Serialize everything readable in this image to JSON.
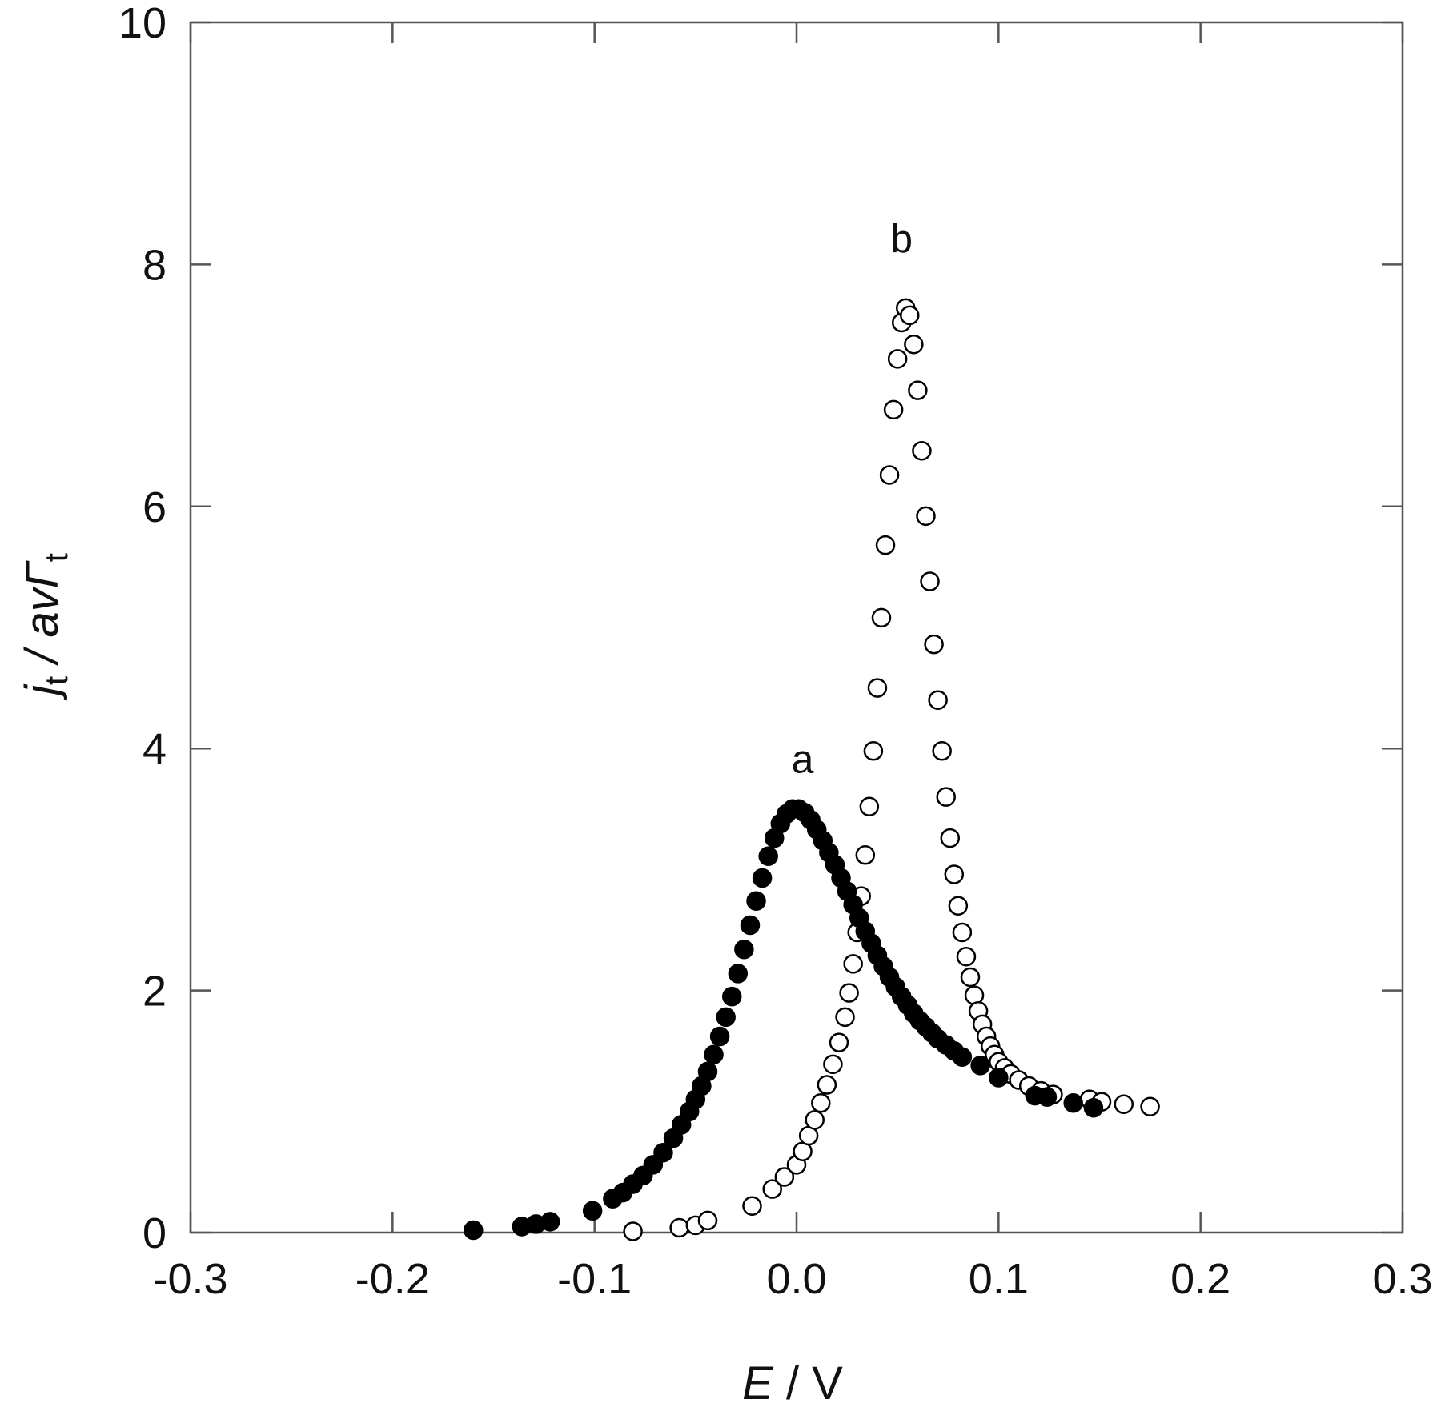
{
  "chart_data": {
    "type": "scatter",
    "title": "",
    "xlabel": "E / V",
    "ylabel": "j_t / avΓ_t",
    "xlabel_parts": {
      "var": "E",
      "rest": " / V"
    },
    "ylabel_parts": {
      "j": "j",
      "sub1": "t",
      "mid": " / av",
      "gamma": "Γ",
      "sub2": "t"
    },
    "xlim": [
      -0.3,
      0.3
    ],
    "ylim": [
      0,
      10
    ],
    "xticks": [
      -0.3,
      -0.2,
      -0.1,
      0.0,
      0.1,
      0.2,
      0.3
    ],
    "xtick_labels": [
      "-0.3",
      "-0.2",
      "-0.1",
      "0.0",
      "0.1",
      "0.2",
      "0.3"
    ],
    "yticks": [
      0,
      2,
      4,
      6,
      8,
      10
    ],
    "ytick_labels": [
      "0",
      "2",
      "4",
      "6",
      "8",
      "10"
    ],
    "grid": false,
    "legend": "none",
    "colors": {
      "marker": "#000000",
      "axis": "#555555",
      "text": "#111111"
    },
    "annotations": [
      {
        "text": "a",
        "x": 0.003,
        "y": 3.8
      },
      {
        "text": "b",
        "x": 0.052,
        "y": 8.1
      }
    ],
    "series": [
      {
        "label": "a",
        "marker": "filled-circle",
        "x": [
          -0.16,
          -0.136,
          -0.129,
          -0.122,
          -0.101,
          -0.091,
          -0.086,
          -0.081,
          -0.076,
          -0.071,
          -0.066,
          -0.061,
          -0.057,
          -0.053,
          -0.05,
          -0.047,
          -0.044,
          -0.041,
          -0.038,
          -0.035,
          -0.032,
          -0.029,
          -0.026,
          -0.023,
          -0.02,
          -0.017,
          -0.014,
          -0.011,
          -0.008,
          -0.005,
          -0.002,
          0.001,
          0.004,
          0.007,
          0.01,
          0.013,
          0.016,
          0.019,
          0.022,
          0.025,
          0.028,
          0.031,
          0.034,
          0.037,
          0.04,
          0.043,
          0.046,
          0.049,
          0.052,
          0.055,
          0.058,
          0.061,
          0.064,
          0.067,
          0.07,
          0.074,
          0.078,
          0.082,
          0.091,
          0.1,
          0.118,
          0.124,
          0.137,
          0.147
        ],
        "y": [
          0.02,
          0.05,
          0.07,
          0.09,
          0.18,
          0.28,
          0.33,
          0.4,
          0.47,
          0.56,
          0.66,
          0.78,
          0.89,
          1.0,
          1.1,
          1.21,
          1.33,
          1.47,
          1.62,
          1.78,
          1.95,
          2.14,
          2.34,
          2.54,
          2.74,
          2.93,
          3.11,
          3.26,
          3.38,
          3.46,
          3.5,
          3.5,
          3.47,
          3.41,
          3.33,
          3.24,
          3.14,
          3.04,
          2.93,
          2.82,
          2.71,
          2.6,
          2.49,
          2.39,
          2.29,
          2.2,
          2.11,
          2.03,
          1.95,
          1.88,
          1.81,
          1.75,
          1.7,
          1.65,
          1.6,
          1.55,
          1.5,
          1.45,
          1.38,
          1.28,
          1.13,
          1.12,
          1.07,
          1.03
        ]
      },
      {
        "label": "b",
        "marker": "open-circle",
        "x": [
          -0.081,
          -0.058,
          -0.05,
          -0.044,
          -0.022,
          -0.012,
          -0.006,
          0.0,
          0.003,
          0.006,
          0.009,
          0.012,
          0.015,
          0.018,
          0.021,
          0.024,
          0.026,
          0.028,
          0.03,
          0.032,
          0.034,
          0.036,
          0.038,
          0.04,
          0.042,
          0.044,
          0.046,
          0.048,
          0.05,
          0.052,
          0.054,
          0.056,
          0.058,
          0.06,
          0.062,
          0.064,
          0.066,
          0.068,
          0.07,
          0.072,
          0.074,
          0.076,
          0.078,
          0.08,
          0.082,
          0.084,
          0.086,
          0.088,
          0.09,
          0.092,
          0.094,
          0.096,
          0.098,
          0.1,
          0.103,
          0.106,
          0.11,
          0.115,
          0.121,
          0.127,
          0.145,
          0.151,
          0.162,
          0.175
        ],
        "y": [
          0.01,
          0.04,
          0.06,
          0.1,
          0.22,
          0.36,
          0.46,
          0.56,
          0.67,
          0.8,
          0.93,
          1.07,
          1.22,
          1.39,
          1.57,
          1.78,
          1.98,
          2.22,
          2.48,
          2.78,
          3.12,
          3.52,
          3.98,
          4.5,
          5.08,
          5.68,
          6.26,
          6.8,
          7.22,
          7.52,
          7.64,
          7.58,
          7.34,
          6.96,
          6.46,
          5.92,
          5.38,
          4.86,
          4.4,
          3.98,
          3.6,
          3.26,
          2.96,
          2.7,
          2.48,
          2.28,
          2.11,
          1.96,
          1.83,
          1.72,
          1.62,
          1.54,
          1.47,
          1.41,
          1.36,
          1.31,
          1.26,
          1.21,
          1.17,
          1.14,
          1.1,
          1.08,
          1.06,
          1.04
        ]
      }
    ]
  }
}
